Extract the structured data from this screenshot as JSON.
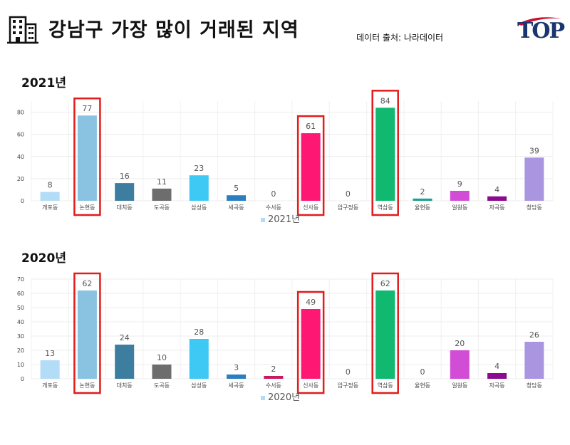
{
  "header": {
    "title": "강남구 가장 많이 거래된 지역",
    "source": "데이터 출처: 나라데이터",
    "building_icon": "building-icon",
    "logo_text": "TOP"
  },
  "chart_data": [
    {
      "type": "bar",
      "title": "2021년",
      "categories": [
        "개포동",
        "논현동",
        "대치동",
        "도곡동",
        "삼성동",
        "세곡동",
        "수서동",
        "신사동",
        "압구정동",
        "역삼동",
        "율현동",
        "일원동",
        "자곡동",
        "청담동"
      ],
      "series": [
        {
          "name": "2021년",
          "values": [
            8,
            77,
            16,
            11,
            23,
            5,
            0,
            61,
            0,
            84,
            2,
            9,
            4,
            39
          ]
        }
      ],
      "colors": [
        "#b3dcf7",
        "#8ac3e2",
        "#3d7ea0",
        "#6d6d6d",
        "#3ec9f5",
        "#2b7fc0",
        "#c71860",
        "#ff1774",
        "#e0e0e0",
        "#10b870",
        "#1ba08f",
        "#d24dd6",
        "#8b0a8e",
        "#a995e0"
      ],
      "ylim": [
        0,
        90
      ],
      "yticks": [
        0,
        20,
        40,
        60,
        80
      ],
      "legend": "bottom-center",
      "highlighted": [
        "논현동",
        "신사동",
        "역삼동"
      ]
    },
    {
      "type": "bar",
      "title": "2020년",
      "categories": [
        "개포동",
        "논현동",
        "대치동",
        "도곡동",
        "삼성동",
        "세곡동",
        "수서동",
        "신사동",
        "압구정동",
        "역삼동",
        "율현동",
        "일원동",
        "자곡동",
        "청담동"
      ],
      "series": [
        {
          "name": "2020년",
          "values": [
            13,
            62,
            24,
            10,
            28,
            3,
            2,
            49,
            0,
            62,
            0,
            20,
            4,
            26
          ]
        }
      ],
      "colors": [
        "#b3dcf7",
        "#8ac3e2",
        "#3d7ea0",
        "#6d6d6d",
        "#3ec9f5",
        "#2b7fc0",
        "#c71860",
        "#ff1774",
        "#e0e0e0",
        "#10b870",
        "#1ba08f",
        "#d24dd6",
        "#8b0a8e",
        "#a995e0"
      ],
      "ylim": [
        0,
        70
      ],
      "yticks": [
        0,
        10,
        20,
        30,
        40,
        50,
        60,
        70
      ],
      "legend": "bottom-center",
      "highlighted": [
        "논현동",
        "신사동",
        "역삼동"
      ]
    }
  ]
}
